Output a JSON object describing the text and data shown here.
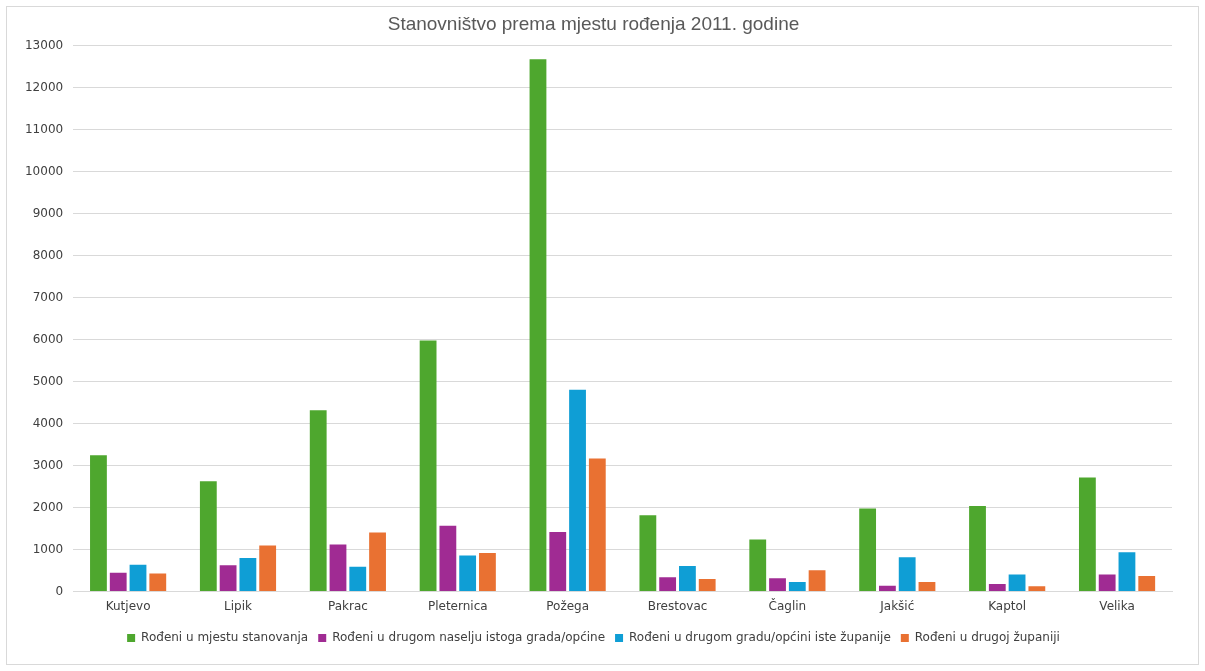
{
  "chart_data": {
    "type": "bar",
    "title": "Stanovništvo prema mjestu rođenja 2011. godine",
    "categories": [
      "Kutjevo",
      "Lipik",
      "Pakrac",
      "Pleternica",
      "Požega",
      "Brestovac",
      "Čaglin",
      "Jakšić",
      "Kaptol",
      "Velika"
    ],
    "series": [
      {
        "name": "Rođeni u mjestu stanovanja",
        "color": "#4ea72e",
        "values": [
          3250,
          2630,
          4320,
          5980,
          12680,
          1820,
          1240,
          1980,
          2040,
          2720
        ]
      },
      {
        "name": "Rođeni u drugom naselju istoga grada/općine",
        "color": "#a02b93",
        "values": [
          450,
          630,
          1120,
          1570,
          1420,
          340,
          320,
          140,
          180,
          410
        ]
      },
      {
        "name": "Rođeni u drugom gradu/općini iste županije",
        "color": "#0f9ed5",
        "values": [
          640,
          800,
          590,
          860,
          4810,
          610,
          230,
          820,
          410,
          940
        ]
      },
      {
        "name": "Rođeni u drugoj županiji",
        "color": "#e97132",
        "values": [
          430,
          1100,
          1410,
          920,
          3170,
          300,
          510,
          230,
          130,
          370
        ]
      }
    ],
    "ylim": [
      0,
      13000
    ],
    "yticks": [
      0,
      1000,
      2000,
      3000,
      4000,
      5000,
      6000,
      7000,
      8000,
      9000,
      10000,
      11000,
      12000,
      13000
    ],
    "grid": "y",
    "legend": "bottom"
  }
}
